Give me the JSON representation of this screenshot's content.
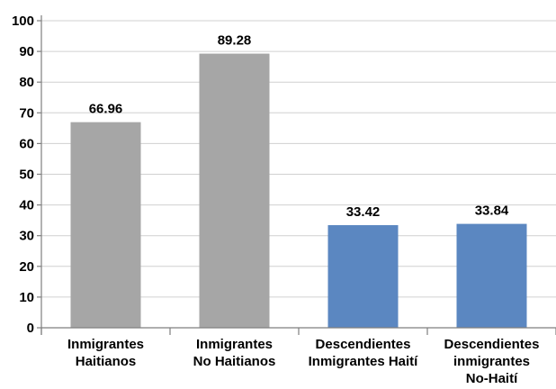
{
  "chart_data": {
    "type": "bar",
    "categories": [
      [
        "Inmigrantes",
        "Haitianos"
      ],
      [
        "Inmigrantes",
        "No Haitianos"
      ],
      [
        "Descendientes",
        "Inmigrantes Haití"
      ],
      [
        "Descendientes",
        "inmigrantes",
        "No-Haití"
      ]
    ],
    "values": [
      66.96,
      89.28,
      33.42,
      33.84
    ],
    "value_labels": [
      "66.96",
      "89.28",
      "33.42",
      "33.84"
    ],
    "bar_colors": [
      "#a6a6a6",
      "#a6a6a6",
      "#5b87c1",
      "#5b87c1"
    ],
    "yticks": [
      "0",
      "10",
      "20",
      "30",
      "40",
      "50",
      "60",
      "70",
      "80",
      "90",
      "100"
    ],
    "ylim": [
      0,
      100
    ],
    "grid": true,
    "title": "",
    "xlabel": "",
    "ylabel": ""
  }
}
